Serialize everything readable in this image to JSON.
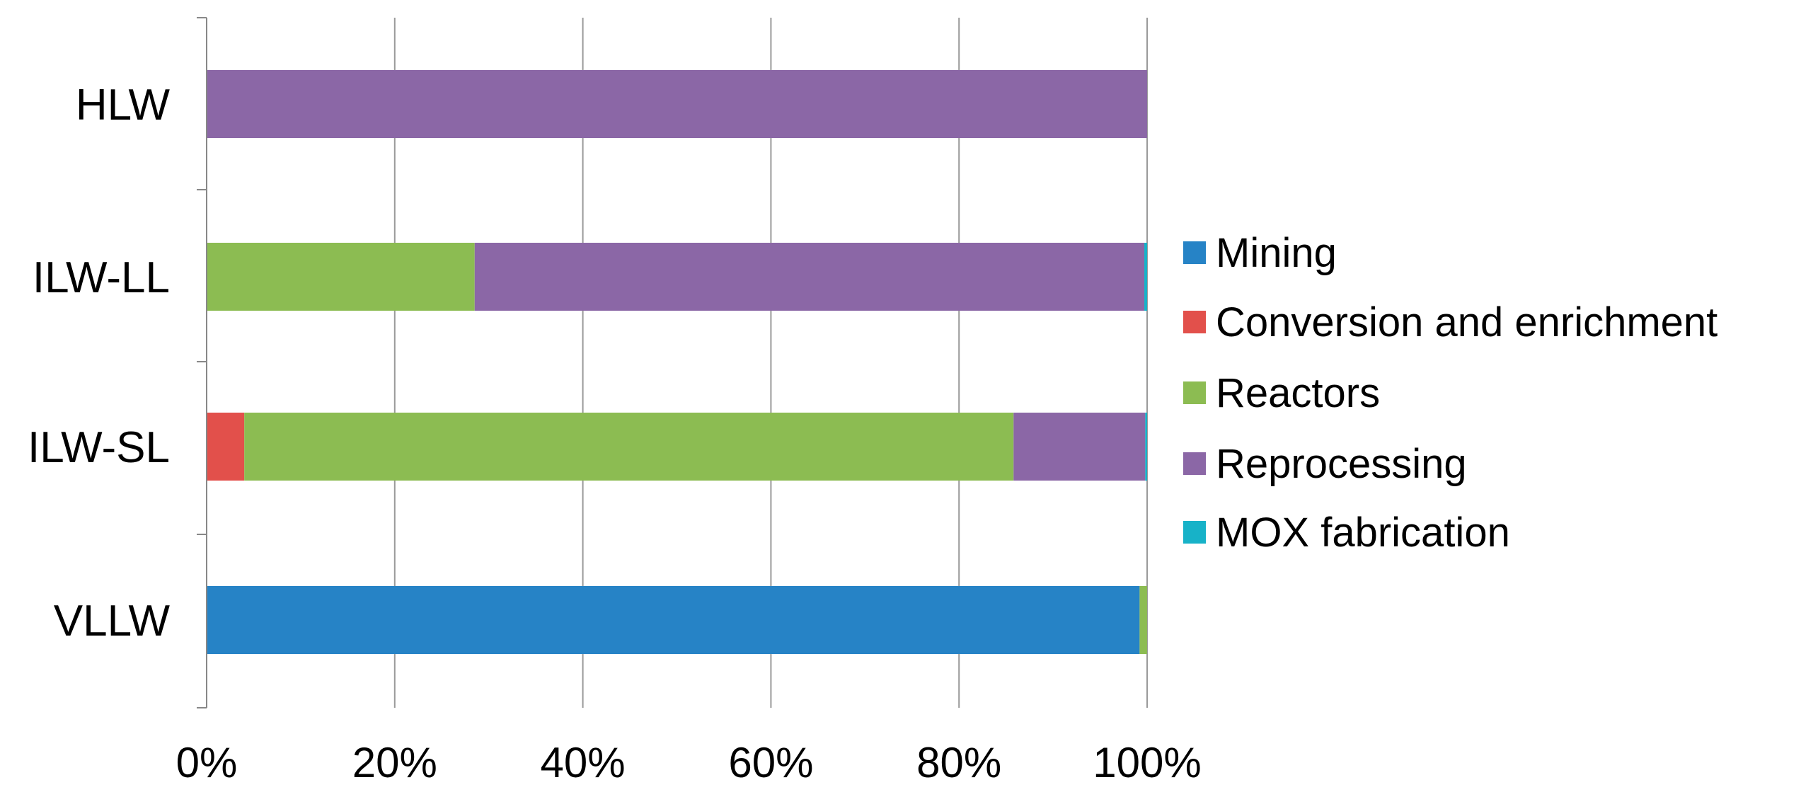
{
  "chart_data": {
    "type": "bar",
    "orientation": "horizontal",
    "stacked": true,
    "percent_stacked": true,
    "categories": [
      "HLW",
      "ILW-LL",
      "ILW-SL",
      "VLLW"
    ],
    "series": [
      {
        "name": "Mining",
        "color": "#2683C6",
        "values": [
          0,
          0,
          0,
          99.2
        ]
      },
      {
        "name": "Conversion and enrichment",
        "color": "#E2504B",
        "values": [
          0,
          0,
          4.0,
          0
        ]
      },
      {
        "name": "Reactors",
        "color": "#8CBC52",
        "values": [
          0,
          28.5,
          81.8,
          0.8
        ]
      },
      {
        "name": "Reprocessing",
        "color": "#8B67A6",
        "values": [
          100,
          71.2,
          14.0,
          0
        ]
      },
      {
        "name": "MOX fabrication",
        "color": "#17B2C8",
        "values": [
          0,
          0.3,
          0.2,
          0
        ]
      }
    ],
    "x_ticks": [
      "0%",
      "20%",
      "40%",
      "60%",
      "80%",
      "100%"
    ],
    "xlim": [
      0,
      100
    ],
    "grid": true,
    "legend_position": "right"
  }
}
